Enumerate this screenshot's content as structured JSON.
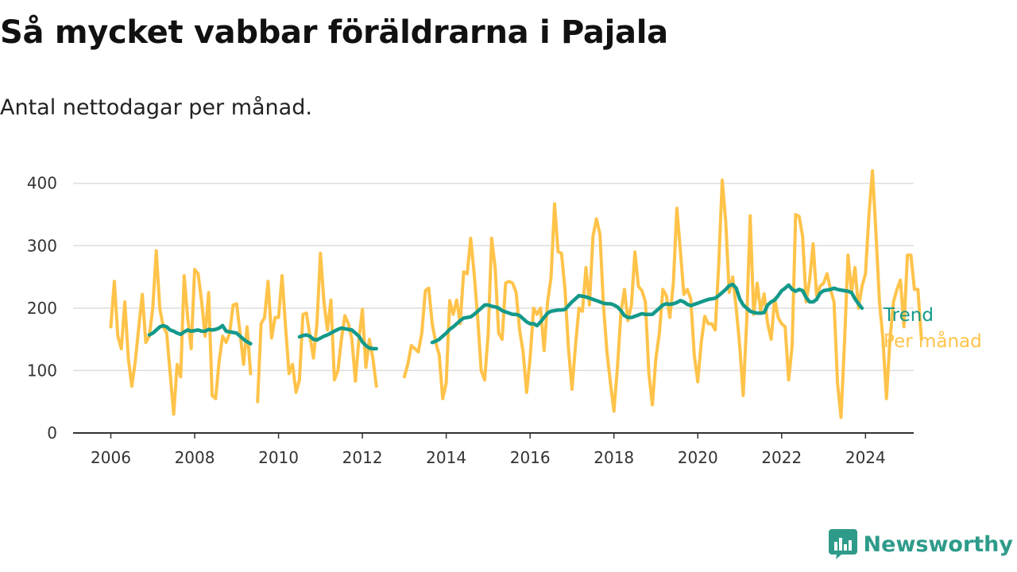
{
  "header": {
    "title": "Så mycket vabbar föräldrarna i Pajala",
    "subtitle": "Antal nettodagar per månad."
  },
  "brand": {
    "name": "Newsworthy",
    "icon": "chart-bubble-icon",
    "color": "#2e9b8a"
  },
  "colors": {
    "trend": "#13998a",
    "monthly": "#ffc34a",
    "grid": "#dddddd",
    "axis": "#333333"
  },
  "chart_data": {
    "type": "line",
    "title": "Så mycket vabbar föräldrarna i Pajala",
    "subtitle": "Antal nettodagar per månad.",
    "xlabel": "",
    "ylabel": "",
    "xlim": [
      2005.1,
      2025.15
    ],
    "ylim": [
      0,
      420
    ],
    "yticks": [
      0,
      100,
      200,
      300,
      400
    ],
    "xticks": [
      2006,
      2008,
      2010,
      2012,
      2014,
      2016,
      2018,
      2020,
      2022,
      2024
    ],
    "grid": true,
    "legend": "right, at line ends",
    "series": [
      {
        "name": "Per månad",
        "color": "#ffc34a",
        "start": [
          2006,
          1
        ],
        "values": [
          170,
          243,
          155,
          135,
          210,
          120,
          75,
          115,
          170,
          222,
          145,
          155,
          200,
          292,
          200,
          170,
          160,
          95,
          30,
          110,
          90,
          252,
          185,
          135,
          262,
          255,
          210,
          155,
          225,
          60,
          55,
          115,
          155,
          145,
          160,
          205,
          207,
          160,
          110,
          170,
          95,
          null,
          50,
          175,
          185,
          243,
          152,
          185,
          185,
          252,
          170,
          95,
          110,
          65,
          85,
          190,
          192,
          155,
          120,
          175,
          288,
          210,
          165,
          213,
          85,
          100,
          150,
          188,
          175,
          150,
          83,
          150,
          198,
          105,
          150,
          120,
          75,
          null,
          null,
          null,
          null,
          null,
          null,
          null,
          90,
          110,
          140,
          135,
          130,
          160,
          228,
          232,
          175,
          145,
          125,
          55,
          80,
          212,
          190,
          213,
          175,
          258,
          255,
          312,
          255,
          185,
          100,
          85,
          158,
          312,
          265,
          160,
          150,
          240,
          243,
          240,
          225,
          165,
          130,
          65,
          120,
          200,
          190,
          200,
          132,
          210,
          250,
          367,
          290,
          288,
          230,
          135,
          70,
          140,
          200,
          195,
          265,
          205,
          315,
          343,
          318,
          205,
          130,
          80,
          35,
          105,
          192,
          230,
          180,
          205,
          290,
          235,
          228,
          210,
          95,
          45,
          120,
          160,
          230,
          220,
          185,
          240,
          360,
          293,
          222,
          230,
          215,
          125,
          82,
          145,
          187,
          175,
          175,
          165,
          270,
          405,
          338,
          225,
          250,
          200,
          140,
          60,
          180,
          348,
          190,
          240,
          195,
          223,
          175,
          150,
          215,
          185,
          175,
          170,
          85,
          140,
          350,
          347,
          315,
          210,
          245,
          303,
          220,
          235,
          240,
          255,
          230,
          210,
          80,
          25,
          145,
          285,
          225,
          265,
          200,
          235,
          255,
          350,
          420,
          320,
          210,
          150,
          55,
          150,
          210,
          230,
          245,
          170,
          285,
          285,
          230,
          230,
          150
        ]
      },
      {
        "name": "Trend",
        "color": "#13998a",
        "start": [
          2006,
          1
        ],
        "values": [
          null,
          null,
          null,
          null,
          null,
          null,
          null,
          null,
          null,
          null,
          null,
          157,
          160,
          165,
          170,
          172,
          170,
          165,
          163,
          160,
          158,
          162,
          165,
          163,
          164,
          165,
          163,
          163,
          166,
          165,
          166,
          168,
          172,
          163,
          162,
          161,
          160,
          155,
          150,
          146,
          143,
          null,
          null,
          null,
          null,
          null,
          null,
          null,
          null,
          null,
          null,
          null,
          null,
          null,
          154,
          156,
          157,
          155,
          150,
          149,
          152,
          155,
          157,
          160,
          163,
          166,
          168,
          167,
          166,
          165,
          160,
          155,
          146,
          140,
          136,
          135,
          135,
          null,
          null,
          null,
          null,
          null,
          null,
          null,
          null,
          null,
          null,
          null,
          null,
          null,
          null,
          null,
          145,
          147,
          150,
          155,
          160,
          166,
          170,
          175,
          180,
          184,
          185,
          186,
          190,
          195,
          200,
          205,
          205,
          203,
          202,
          200,
          196,
          194,
          192,
          190,
          190,
          188,
          183,
          178,
          175,
          175,
          172,
          178,
          185,
          192,
          195,
          196,
          197,
          197,
          198,
          204,
          210,
          215,
          220,
          219,
          218,
          216,
          214,
          212,
          210,
          208,
          207,
          207,
          205,
          202,
          196,
          188,
          185,
          185,
          187,
          189,
          191,
          190,
          190,
          190,
          195,
          200,
          205,
          207,
          206,
          207,
          209,
          212,
          210,
          206,
          204,
          206,
          208,
          210,
          212,
          214,
          215,
          216,
          220,
          225,
          230,
          236,
          238,
          232,
          215,
          205,
          200,
          195,
          193,
          192,
          192,
          193,
          205,
          210,
          213,
          220,
          228,
          232,
          237,
          230,
          227,
          230,
          228,
          217,
          210,
          210,
          214,
          224,
          228,
          229,
          230,
          232,
          230,
          229,
          228,
          227,
          225,
          215,
          207,
          200
        ]
      }
    ]
  }
}
